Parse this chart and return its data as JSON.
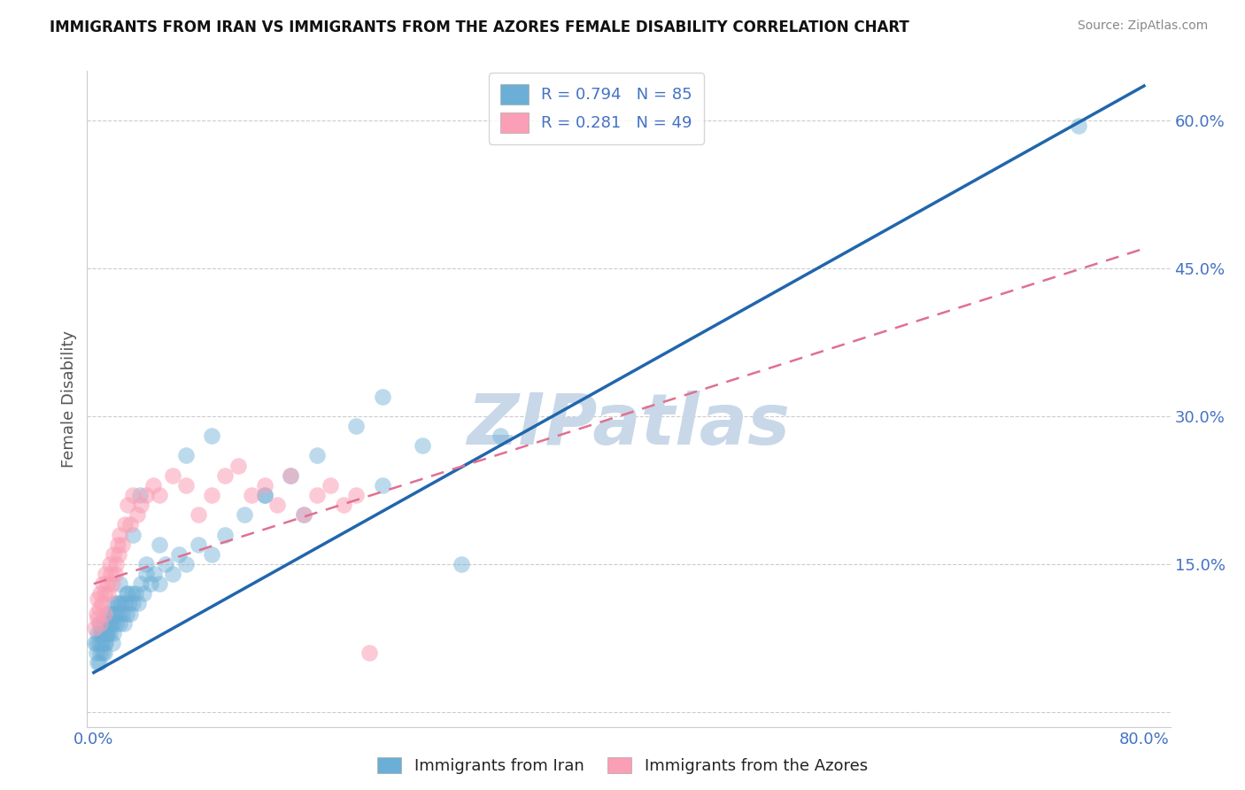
{
  "title": "IMMIGRANTS FROM IRAN VS IMMIGRANTS FROM THE AZORES FEMALE DISABILITY CORRELATION CHART",
  "source": "Source: ZipAtlas.com",
  "ylabel": "Female Disability",
  "xlim": [
    -0.005,
    0.82
  ],
  "ylim": [
    -0.015,
    0.65
  ],
  "xticks": [
    0.0,
    0.1,
    0.2,
    0.3,
    0.4,
    0.5,
    0.6,
    0.7,
    0.8
  ],
  "xticklabels_show": [
    "0.0%",
    "80.0%"
  ],
  "yticks": [
    0.0,
    0.15,
    0.3,
    0.45,
    0.6
  ],
  "yticklabels": [
    "",
    "15.0%",
    "30.0%",
    "45.0%",
    "60.0%"
  ],
  "legend_R1": "R = 0.794",
  "legend_N1": "N = 85",
  "legend_R2": "R = 0.281",
  "legend_N2": "N = 49",
  "iran_color": "#6baed6",
  "azores_color": "#fa9fb5",
  "iran_trend_color": "#2166ac",
  "azores_trend_color": "#e07090",
  "watermark": "ZIPatlas",
  "watermark_color": "#c8d8e8",
  "iran_scatter_x": [
    0.001,
    0.002,
    0.003,
    0.003,
    0.004,
    0.004,
    0.005,
    0.005,
    0.006,
    0.006,
    0.007,
    0.007,
    0.008,
    0.008,
    0.009,
    0.009,
    0.01,
    0.01,
    0.011,
    0.012,
    0.012,
    0.013,
    0.014,
    0.015,
    0.015,
    0.016,
    0.017,
    0.018,
    0.019,
    0.02,
    0.021,
    0.022,
    0.023,
    0.024,
    0.025,
    0.026,
    0.027,
    0.028,
    0.029,
    0.03,
    0.032,
    0.034,
    0.036,
    0.038,
    0.04,
    0.043,
    0.046,
    0.05,
    0.055,
    0.06,
    0.065,
    0.07,
    0.08,
    0.09,
    0.1,
    0.115,
    0.13,
    0.15,
    0.17,
    0.2,
    0.22,
    0.25,
    0.28,
    0.31,
    0.22,
    0.16,
    0.13,
    0.09,
    0.07,
    0.05,
    0.04,
    0.035,
    0.03,
    0.025,
    0.02,
    0.018,
    0.016,
    0.014,
    0.012,
    0.01,
    0.008,
    0.006,
    0.004,
    0.002,
    0.75
  ],
  "iran_scatter_y": [
    0.07,
    0.06,
    0.08,
    0.05,
    0.07,
    0.09,
    0.06,
    0.08,
    0.07,
    0.09,
    0.08,
    0.06,
    0.07,
    0.09,
    0.08,
    0.07,
    0.09,
    0.08,
    0.1,
    0.09,
    0.08,
    0.1,
    0.09,
    0.11,
    0.08,
    0.1,
    0.09,
    0.11,
    0.1,
    0.09,
    0.11,
    0.1,
    0.09,
    0.11,
    0.1,
    0.12,
    0.11,
    0.1,
    0.12,
    0.11,
    0.12,
    0.11,
    0.13,
    0.12,
    0.14,
    0.13,
    0.14,
    0.13,
    0.15,
    0.14,
    0.16,
    0.15,
    0.17,
    0.16,
    0.18,
    0.2,
    0.22,
    0.24,
    0.26,
    0.29,
    0.32,
    0.27,
    0.15,
    0.28,
    0.23,
    0.2,
    0.22,
    0.28,
    0.26,
    0.17,
    0.15,
    0.22,
    0.18,
    0.12,
    0.13,
    0.11,
    0.1,
    0.07,
    0.09,
    0.08,
    0.06,
    0.08,
    0.05,
    0.07,
    0.595
  ],
  "azores_scatter_x": [
    0.001,
    0.002,
    0.003,
    0.003,
    0.004,
    0.005,
    0.005,
    0.006,
    0.007,
    0.008,
    0.008,
    0.009,
    0.01,
    0.011,
    0.012,
    0.013,
    0.014,
    0.015,
    0.016,
    0.017,
    0.018,
    0.019,
    0.02,
    0.022,
    0.024,
    0.026,
    0.028,
    0.03,
    0.033,
    0.036,
    0.04,
    0.045,
    0.05,
    0.06,
    0.07,
    0.08,
    0.09,
    0.1,
    0.11,
    0.12,
    0.13,
    0.14,
    0.15,
    0.16,
    0.17,
    0.18,
    0.19,
    0.2,
    0.21
  ],
  "azores_scatter_y": [
    0.085,
    0.1,
    0.095,
    0.115,
    0.105,
    0.12,
    0.09,
    0.11,
    0.13,
    0.12,
    0.1,
    0.14,
    0.13,
    0.12,
    0.15,
    0.14,
    0.13,
    0.16,
    0.14,
    0.15,
    0.17,
    0.16,
    0.18,
    0.17,
    0.19,
    0.21,
    0.19,
    0.22,
    0.2,
    0.21,
    0.22,
    0.23,
    0.22,
    0.24,
    0.23,
    0.2,
    0.22,
    0.24,
    0.25,
    0.22,
    0.23,
    0.21,
    0.24,
    0.2,
    0.22,
    0.23,
    0.21,
    0.22,
    0.06
  ],
  "iran_trend_x": [
    0.0,
    0.8
  ],
  "iran_trend_y": [
    0.04,
    0.635
  ],
  "azores_trend_x": [
    0.0,
    0.8
  ],
  "azores_trend_y": [
    0.13,
    0.47
  ],
  "bottom_legend": [
    {
      "label": "Immigrants from Iran",
      "color": "#6baed6"
    },
    {
      "label": "Immigrants from the Azores",
      "color": "#fa9fb5"
    }
  ]
}
